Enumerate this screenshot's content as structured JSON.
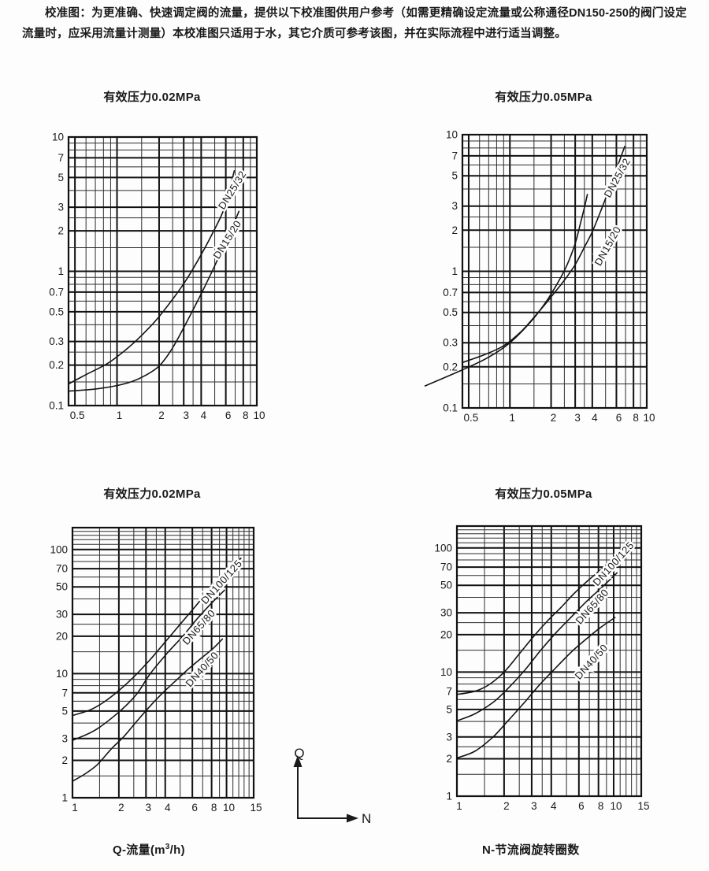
{
  "header": {
    "text": "校准图：为更准确、快速调定阀的流量，提供以下校准图供用户参考（如需更精确设定流量或公称通径DN150-250的阀门设定流量时，应采用流量计测量）本校准图只适用于水，其它介质可参考该图，并在实际流程中进行适当调整。"
  },
  "captions": {
    "q": {
      "prefix": "Q-流量(m",
      "sup": "3",
      "suffix": "/h)"
    },
    "n": "N-节流阀旋转圈数"
  },
  "axis_legend": {
    "q": "Q",
    "n": "N"
  },
  "colors": {
    "ink": "#1a1a1a",
    "grid_minor": "#2d2d2d",
    "grid_major": "#111111",
    "curve": "#141414"
  },
  "chart_data": [
    {
      "type": "line",
      "scale": "log-log",
      "title": "有效压力0.02MPa",
      "xlim": [
        0.45,
        10
      ],
      "ylim": [
        0.1,
        10
      ],
      "x_ticks": [
        {
          "v": 0.5,
          "t": "0.5"
        },
        {
          "v": 1,
          "t": "1"
        },
        {
          "v": 2,
          "t": "2"
        },
        {
          "v": 3,
          "t": "3"
        },
        {
          "v": 4,
          "t": "4"
        },
        {
          "v": 6,
          "t": "6"
        },
        {
          "v": 8,
          "t": "8"
        },
        {
          "v": 10,
          "t": "10"
        }
      ],
      "y_ticks": [
        {
          "v": 10,
          "t": "10"
        },
        {
          "v": 7,
          "t": "7"
        },
        {
          "v": 5,
          "t": "5"
        },
        {
          "v": 3,
          "t": "3"
        },
        {
          "v": 2,
          "t": "2"
        },
        {
          "v": 1,
          "t": "1"
        },
        {
          "v": 0.7,
          "t": "0.7"
        },
        {
          "v": 0.5,
          "t": "0.5"
        },
        {
          "v": 0.3,
          "t": "0.3"
        },
        {
          "v": 0.2,
          "t": "0.2"
        },
        {
          "v": 0.1,
          "t": "0.1"
        }
      ],
      "x_grid": [
        0.5,
        0.6,
        0.7,
        0.8,
        0.9,
        1,
        1.5,
        2,
        2.5,
        3,
        3.5,
        4,
        5,
        6,
        7,
        8,
        9,
        10
      ],
      "y_grid": [
        0.1,
        0.15,
        0.2,
        0.25,
        0.3,
        0.4,
        0.5,
        0.6,
        0.7,
        0.8,
        0.9,
        1,
        1.5,
        2,
        2.5,
        3,
        4,
        5,
        6,
        7,
        8,
        9,
        10
      ],
      "series": [
        {
          "name": "DN25/32",
          "points": [
            [
              0.45,
              0.145
            ],
            [
              0.6,
              0.17
            ],
            [
              0.85,
              0.205
            ],
            [
              1.1,
              0.25
            ],
            [
              1.35,
              0.3
            ],
            [
              1.7,
              0.38
            ],
            [
              2.0,
              0.46
            ],
            [
              2.5,
              0.62
            ],
            [
              3.1,
              0.85
            ],
            [
              3.9,
              1.27
            ],
            [
              4.8,
              1.9
            ],
            [
              5.7,
              2.75
            ],
            [
              6.3,
              3.9
            ],
            [
              6.9,
              5.6
            ]
          ]
        },
        {
          "name": "DN15/20",
          "points": [
            [
              0.45,
              0.128
            ],
            [
              0.7,
              0.133
            ],
            [
              1.0,
              0.141
            ],
            [
              1.3,
              0.152
            ],
            [
              1.6,
              0.168
            ],
            [
              2.0,
              0.197
            ],
            [
              2.45,
              0.26
            ],
            [
              3.0,
              0.38
            ],
            [
              4.0,
              0.68
            ],
            [
              5.0,
              1.1
            ],
            [
              6.0,
              1.68
            ],
            [
              7.0,
              2.4
            ],
            [
              7.45,
              2.8
            ]
          ]
        }
      ],
      "labels": [
        {
          "text": "DN25/32",
          "x": 7.0,
          "y": 3.9,
          "angle": -58
        },
        {
          "text": "DN15/20",
          "x": 6.45,
          "y": 1.67,
          "angle": -58
        }
      ]
    },
    {
      "type": "line",
      "scale": "log-log",
      "title": "有效压力0.05MPa",
      "xlim": [
        0.45,
        10
      ],
      "ylim": [
        0.1,
        10
      ],
      "x_ticks": [
        {
          "v": 0.5,
          "t": "0.5"
        },
        {
          "v": 1,
          "t": "1"
        },
        {
          "v": 2,
          "t": "2"
        },
        {
          "v": 3,
          "t": "3"
        },
        {
          "v": 4,
          "t": "4"
        },
        {
          "v": 6,
          "t": "6"
        },
        {
          "v": 8,
          "t": "8"
        },
        {
          "v": 10,
          "t": "10"
        }
      ],
      "y_ticks": [
        {
          "v": 10,
          "t": "10"
        },
        {
          "v": 7,
          "t": "7"
        },
        {
          "v": 5,
          "t": "5"
        },
        {
          "v": 3,
          "t": "3"
        },
        {
          "v": 2,
          "t": "2"
        },
        {
          "v": 1,
          "t": "1"
        },
        {
          "v": 0.7,
          "t": "0.7"
        },
        {
          "v": 0.5,
          "t": "0.5"
        },
        {
          "v": 0.3,
          "t": "0.3"
        },
        {
          "v": 0.2,
          "t": "0.2"
        },
        {
          "v": 0.1,
          "t": "0.1"
        }
      ],
      "x_grid": [
        0.5,
        0.6,
        0.7,
        0.8,
        0.9,
        1,
        1.5,
        2,
        2.5,
        3,
        3.5,
        4,
        5,
        6,
        7,
        8,
        9,
        10
      ],
      "y_grid": [
        0.1,
        0.15,
        0.2,
        0.25,
        0.3,
        0.4,
        0.5,
        0.6,
        0.7,
        0.8,
        0.9,
        1,
        1.5,
        2,
        2.5,
        3,
        4,
        5,
        6,
        7,
        8,
        9,
        10
      ],
      "series": [
        {
          "name": "DN25/32",
          "points": [
            [
              0.45,
              0.215
            ],
            [
              0.65,
              0.245
            ],
            [
              0.9,
              0.285
            ],
            [
              1.2,
              0.36
            ],
            [
              1.5,
              0.46
            ],
            [
              1.8,
              0.57
            ],
            [
              2.1,
              0.69
            ],
            [
              2.5,
              0.86
            ],
            [
              3.0,
              1.12
            ],
            [
              3.5,
              1.5
            ],
            [
              4.0,
              1.95
            ],
            [
              4.7,
              2.9
            ],
            [
              5.5,
              4.4
            ],
            [
              6.2,
              6.1
            ],
            [
              6.9,
              8.2
            ]
          ]
        },
        {
          "name": "DN15/20",
          "points": [
            [
              0.24,
              0.145
            ],
            [
              0.45,
              0.19
            ],
            [
              0.7,
              0.235
            ],
            [
              1.0,
              0.3
            ],
            [
              1.4,
              0.42
            ],
            [
              1.8,
              0.58
            ],
            [
              2.2,
              0.8
            ],
            [
              2.6,
              1.1
            ],
            [
              3.0,
              1.6
            ],
            [
              3.3,
              2.3
            ],
            [
              3.55,
              3.1
            ],
            [
              3.68,
              3.65
            ]
          ]
        }
      ],
      "labels": [
        {
          "text": "DN25/32",
          "x": 6.4,
          "y": 4.7,
          "angle": -61
        },
        {
          "text": "DN15/20",
          "x": 5.46,
          "y": 1.49,
          "angle": -61
        }
      ]
    },
    {
      "type": "line",
      "scale": "log-log",
      "title": "有效压力0.02MPa",
      "xlim": [
        1,
        15
      ],
      "ylim": [
        1,
        150
      ],
      "x_ticks": [
        {
          "v": 1,
          "t": "1"
        },
        {
          "v": 2,
          "t": "2"
        },
        {
          "v": 3,
          "t": "3"
        },
        {
          "v": 4,
          "t": "4"
        },
        {
          "v": 6,
          "t": "6"
        },
        {
          "v": 8,
          "t": "8"
        },
        {
          "v": 10,
          "t": "10"
        },
        {
          "v": 15,
          "t": "15"
        }
      ],
      "y_ticks": [
        {
          "v": 100,
          "t": "100"
        },
        {
          "v": 70,
          "t": "70"
        },
        {
          "v": 50,
          "t": "50"
        },
        {
          "v": 30,
          "t": "30"
        },
        {
          "v": 20,
          "t": "20"
        },
        {
          "v": 10,
          "t": "10"
        },
        {
          "v": 7,
          "t": "7"
        },
        {
          "v": 5,
          "t": "5"
        },
        {
          "v": 3,
          "t": "3"
        },
        {
          "v": 2,
          "t": "2"
        },
        {
          "v": 1,
          "t": "1"
        }
      ],
      "x_grid": [
        1,
        1.5,
        2,
        2.5,
        3,
        3.5,
        4,
        5,
        6,
        7,
        8,
        9,
        10,
        11,
        12,
        13,
        14,
        15
      ],
      "y_grid": [
        1,
        1.5,
        2,
        2.5,
        3,
        4,
        5,
        6,
        7,
        8,
        9,
        10,
        15,
        20,
        25,
        30,
        40,
        50,
        60,
        70,
        80,
        90,
        100,
        110,
        120,
        130,
        140,
        150
      ],
      "series": [
        {
          "name": "DN100/125",
          "points": [
            [
              1,
              4.6
            ],
            [
              1.3,
              5.1
            ],
            [
              1.6,
              5.9
            ],
            [
              2,
              7.3
            ],
            [
              2.5,
              9.4
            ],
            [
              3.2,
              13
            ],
            [
              4,
              18
            ],
            [
              5,
              25
            ],
            [
              6.3,
              35
            ],
            [
              7.9,
              49
            ],
            [
              9.9,
              66
            ],
            [
              12.4,
              85
            ]
          ]
        },
        {
          "name": "DN65/80",
          "points": [
            [
              1,
              2.9
            ],
            [
              1.4,
              3.5
            ],
            [
              2,
              4.9
            ],
            [
              2.6,
              6.8
            ],
            [
              3.2,
              10
            ],
            [
              4.1,
              14.5
            ],
            [
              5.2,
              20
            ],
            [
              6.5,
              28
            ],
            [
              8,
              37
            ],
            [
              9.7,
              47
            ]
          ]
        },
        {
          "name": "DN40/50",
          "points": [
            [
              1,
              1.36
            ],
            [
              1.2,
              1.55
            ],
            [
              1.45,
              1.85
            ],
            [
              1.8,
              2.5
            ],
            [
              2.15,
              3.1
            ],
            [
              2.6,
              4.1
            ],
            [
              3.2,
              5.5
            ],
            [
              3.9,
              7.1
            ],
            [
              4.7,
              8.8
            ],
            [
              5.7,
              11
            ],
            [
              7,
              13.6
            ],
            [
              8.2,
              16
            ],
            [
              9.4,
              19
            ]
          ]
        }
      ],
      "labels": [
        {
          "text": "DN100/125",
          "x": 9.65,
          "y": 52.5,
          "angle": -48
        },
        {
          "text": "DN65/80",
          "x": 6.87,
          "y": 22.7,
          "angle": -48
        },
        {
          "text": "DN40/50",
          "x": 7.2,
          "y": 10.4,
          "angle": -48
        }
      ]
    },
    {
      "type": "line",
      "scale": "log-log",
      "title": "有效压力0.05MPa",
      "xlim": [
        1,
        15
      ],
      "ylim": [
        1,
        150
      ],
      "x_ticks": [
        {
          "v": 1,
          "t": "1"
        },
        {
          "v": 2,
          "t": "2"
        },
        {
          "v": 3,
          "t": "3"
        },
        {
          "v": 4,
          "t": "4"
        },
        {
          "v": 6,
          "t": "6"
        },
        {
          "v": 8,
          "t": "8"
        },
        {
          "v": 10,
          "t": "10"
        },
        {
          "v": 15,
          "t": "15"
        }
      ],
      "y_ticks": [
        {
          "v": 100,
          "t": "100"
        },
        {
          "v": 70,
          "t": "70"
        },
        {
          "v": 50,
          "t": "50"
        },
        {
          "v": 30,
          "t": "30"
        },
        {
          "v": 20,
          "t": "20"
        },
        {
          "v": 10,
          "t": "10"
        },
        {
          "v": 7,
          "t": "7"
        },
        {
          "v": 5,
          "t": "5"
        },
        {
          "v": 3,
          "t": "3"
        },
        {
          "v": 2,
          "t": "2"
        },
        {
          "v": 1,
          "t": "1"
        }
      ],
      "x_grid": [
        1,
        1.5,
        2,
        2.5,
        3,
        3.5,
        4,
        5,
        6,
        7,
        8,
        9,
        10,
        11,
        12,
        13,
        14,
        15
      ],
      "y_grid": [
        1,
        1.5,
        2,
        2.5,
        3,
        4,
        5,
        6,
        7,
        8,
        9,
        10,
        15,
        20,
        25,
        30,
        40,
        50,
        60,
        70,
        80,
        90,
        100,
        110,
        120,
        130,
        140,
        150
      ],
      "series": [
        {
          "name": "DN100/125",
          "points": [
            [
              1,
              6.6
            ],
            [
              1.3,
              7.0
            ],
            [
              1.6,
              7.9
            ],
            [
              2,
              10
            ],
            [
              2.5,
              14
            ],
            [
              3.1,
              19.5
            ],
            [
              3.8,
              26
            ],
            [
              4.6,
              33
            ],
            [
              5.6,
              43
            ],
            [
              6.8,
              54
            ],
            [
              8.4,
              68
            ],
            [
              10.4,
              86
            ],
            [
              12.9,
              108
            ]
          ]
        },
        {
          "name": "DN65/80",
          "points": [
            [
              1,
              4.05
            ],
            [
              1.3,
              4.6
            ],
            [
              1.7,
              5.7
            ],
            [
              2.1,
              7.3
            ],
            [
              2.7,
              10.3
            ],
            [
              3.4,
              14.8
            ],
            [
              4.3,
              20.8
            ],
            [
              5.4,
              28
            ],
            [
              6.7,
              37
            ],
            [
              8.4,
              48
            ],
            [
              10.5,
              63
            ]
          ]
        },
        {
          "name": "DN40/50",
          "points": [
            [
              1,
              2.03
            ],
            [
              1.3,
              2.3
            ],
            [
              1.7,
              3.0
            ],
            [
              2.1,
              4.0
            ],
            [
              2.7,
              5.7
            ],
            [
              3.4,
              8.0
            ],
            [
              4.3,
              10.9
            ],
            [
              5.4,
              14.6
            ],
            [
              6.7,
              18.5
            ],
            [
              8.3,
              23
            ],
            [
              10.2,
              27.5
            ]
          ]
        }
      ],
      "labels": [
        {
          "text": "DN100/125",
          "x": 10.35,
          "y": 71.4,
          "angle": -48
        },
        {
          "text": "DN65/80",
          "x": 7.57,
          "y": 32.3,
          "angle": -48
        },
        {
          "text": "DN40/50",
          "x": 7.48,
          "y": 11.6,
          "angle": -48
        }
      ]
    }
  ]
}
